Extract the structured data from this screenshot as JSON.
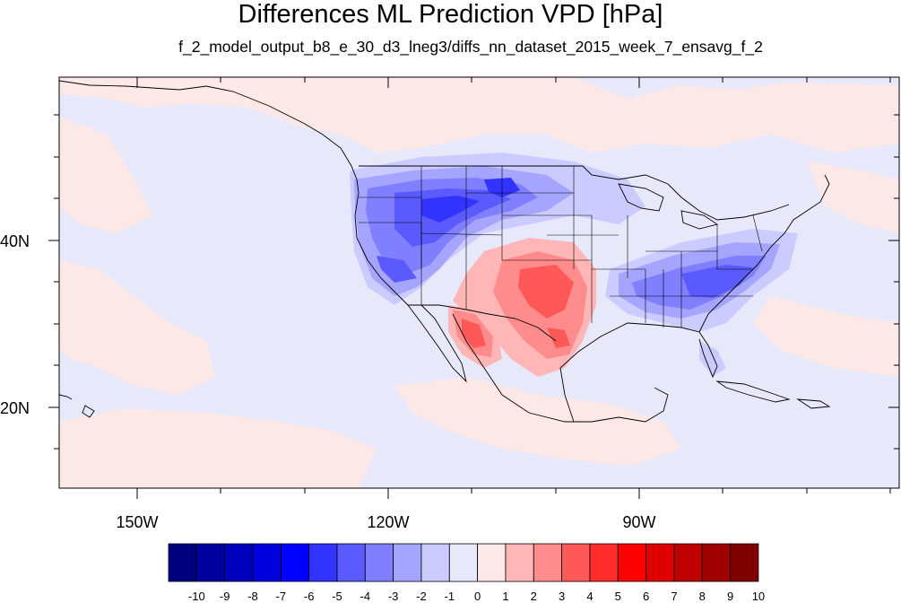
{
  "title": "Differences ML Prediction VPD [hPa]",
  "subtitle": "f_2_model_output_b8_e_30_d3_lneg3/diffs_nn_dataset_2015_week_7_ensavg_f_2",
  "axes": {
    "lat_labels": [
      "40N",
      "20N"
    ],
    "lon_labels": [
      "150W",
      "120W",
      "90W"
    ]
  },
  "colorbar": {
    "labels": [
      "-10",
      "-9",
      "-8",
      "-7",
      "-6",
      "-5",
      "-4",
      "-3",
      "-2",
      "-1",
      "0",
      "1",
      "2",
      "3",
      "4",
      "5",
      "6",
      "7",
      "8",
      "9",
      "10"
    ],
    "colors": [
      "#00007f",
      "#00009f",
      "#0000bf",
      "#0000df",
      "#0000ff",
      "#3333ff",
      "#5a5aff",
      "#7f7fff",
      "#a5a5ff",
      "#cbcbff",
      "#e8e8fb",
      "#fde8e8",
      "#ffb6b6",
      "#ff8c8c",
      "#ff5858",
      "#ff2c2c",
      "#ff0000",
      "#df0000",
      "#bf0000",
      "#9f0000",
      "#7f0000"
    ]
  }
}
